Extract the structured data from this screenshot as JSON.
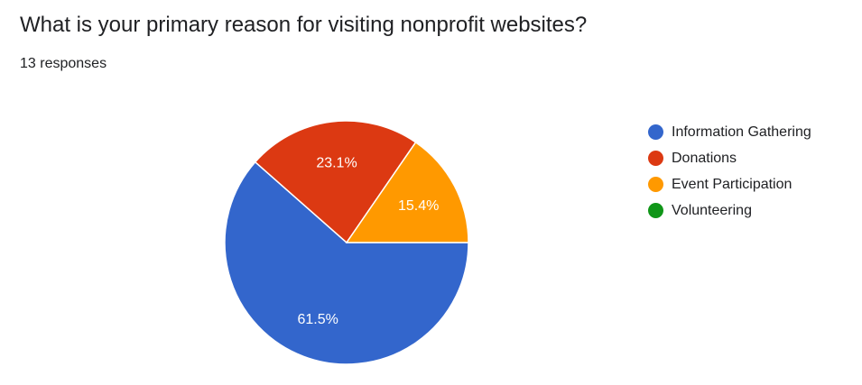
{
  "question": {
    "title": "What is your primary reason for visiting nonprofit websites?",
    "responses": "13 responses"
  },
  "chart_data": {
    "type": "pie",
    "categories": [
      "Information Gathering",
      "Donations",
      "Event Participation",
      "Volunteering"
    ],
    "values": [
      61.5,
      23.1,
      15.4,
      0
    ],
    "labels": [
      "61.5%",
      "23.1%",
      "15.4%",
      ""
    ],
    "colors": [
      "#3366cc",
      "#dc3912",
      "#ff9900",
      "#109618"
    ],
    "legend_position": "right"
  }
}
